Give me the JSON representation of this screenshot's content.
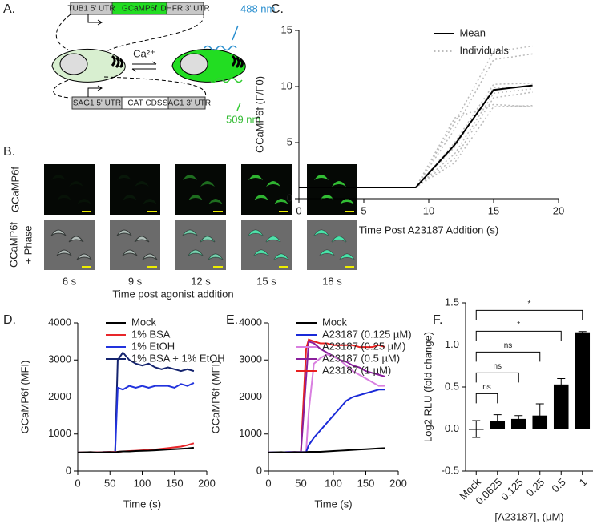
{
  "panel_a": {
    "label": "A.",
    "top_construct": [
      "TUB1 5' UTR",
      "GCaMP6f",
      "DHFR 3' UTR"
    ],
    "bottom_construct": [
      "SAG1 5' UTR",
      "CAT-CDS",
      "SAG1 3' UTR"
    ],
    "ion": "Ca²⁺",
    "excitation": "488 nm",
    "emission": "509 nm"
  },
  "panel_b": {
    "label": "B.",
    "row_labels": [
      [
        "GCaMP6f"
      ],
      [
        "GCaMP6f",
        "+ Phase"
      ]
    ],
    "times": [
      "6 s",
      "9 s",
      "12 s",
      "15 s",
      "18 s"
    ],
    "xlabel": "Time post agonist addition"
  },
  "chart_data": [
    {
      "type": "line",
      "panel": "C.",
      "xlabel": "Time Post A23187 Addition (s)",
      "ylabel": "GCaMP6f (F/F0)",
      "x": [
        0,
        3,
        6,
        9,
        12,
        15,
        18
      ],
      "xlim": [
        0,
        20
      ],
      "xticks": [
        0,
        5,
        10,
        15,
        20
      ],
      "ylim": [
        0,
        15
      ],
      "yticks": [
        0,
        5,
        10,
        15
      ],
      "legend": "upper right",
      "series": [
        {
          "name": "Mean",
          "color": "#000000",
          "style": "solid",
          "values": [
            1,
            1,
            1,
            1,
            4.8,
            9.7,
            10.1
          ]
        },
        {
          "name": "Individuals",
          "color": "#bbbbbb",
          "style": "dotted",
          "values": [
            [
              1,
              1,
              1,
              1,
              6.8,
              13.1,
              13.6
            ],
            [
              1,
              1,
              1,
              1,
              6.2,
              12.4,
              12.9
            ],
            [
              1,
              1,
              1,
              1,
              5.0,
              10.2,
              10.3
            ],
            [
              1,
              1,
              1,
              1,
              4.6,
              9.9,
              10.0
            ],
            [
              1,
              1,
              1,
              1,
              4.0,
              9.4,
              9.8
            ],
            [
              1,
              1,
              1,
              1,
              3.6,
              9.0,
              9.5
            ],
            [
              1,
              1,
              1,
              1,
              3.2,
              8.2,
              8.3
            ],
            [
              1,
              1,
              1,
              1,
              7.2,
              8.4,
              8.2
            ]
          ]
        }
      ]
    },
    {
      "type": "line",
      "panel": "D.",
      "xlabel": "Time (s)",
      "ylabel": "GCaMP6f (MFI)",
      "x": [
        0,
        10,
        20,
        30,
        40,
        50,
        58,
        62,
        70,
        80,
        90,
        100,
        110,
        120,
        130,
        140,
        150,
        160,
        170,
        180
      ],
      "xlim": [
        0,
        200
      ],
      "xticks": [
        0,
        50,
        100,
        150,
        200
      ],
      "ylim": [
        0,
        4000
      ],
      "yticks": [
        0,
        1000,
        2000,
        3000,
        4000
      ],
      "legend": "upper left",
      "series": [
        {
          "name": "Mock",
          "color": "#000000",
          "values": [
            500,
            505,
            510,
            500,
            505,
            510,
            500,
            520,
            530,
            530,
            540,
            545,
            550,
            560,
            570,
            580,
            590,
            600,
            610,
            630
          ]
        },
        {
          "name": "1% BSA",
          "color": "#e8262a",
          "values": [
            500,
            505,
            510,
            505,
            510,
            515,
            510,
            520,
            530,
            540,
            550,
            560,
            570,
            580,
            600,
            620,
            640,
            660,
            700,
            750
          ]
        },
        {
          "name": "1% EtOH",
          "color": "#2233dd",
          "values": [
            500,
            500,
            505,
            505,
            510,
            510,
            500,
            2250,
            2200,
            2300,
            2250,
            2300,
            2250,
            2300,
            2300,
            2300,
            2250,
            2350,
            2300,
            2380
          ]
        },
        {
          "name": "1% BSA + 1% EtOH",
          "color": "#14236e",
          "values": [
            500,
            500,
            505,
            505,
            510,
            510,
            520,
            3000,
            3200,
            3000,
            2900,
            2850,
            2900,
            2800,
            2750,
            2800,
            2750,
            2700,
            2750,
            2700
          ]
        }
      ]
    },
    {
      "type": "line",
      "panel": "E.",
      "xlabel": "Time (s)",
      "ylabel": "GCaMP6f  (MFI)",
      "x": [
        0,
        10,
        20,
        30,
        40,
        50,
        58,
        62,
        70,
        80,
        90,
        100,
        110,
        120,
        130,
        140,
        150,
        160,
        170,
        180
      ],
      "xlim": [
        0,
        200
      ],
      "xticks": [
        0,
        50,
        100,
        150,
        200
      ],
      "ylim": [
        0,
        4000
      ],
      "yticks": [
        0,
        1000,
        2000,
        3000,
        4000
      ],
      "legend": "upper left",
      "series": [
        {
          "name": "Mock",
          "color": "#000000",
          "values": [
            500,
            505,
            510,
            500,
            510,
            505,
            510,
            520,
            520,
            520,
            530,
            540,
            550,
            560,
            570,
            580,
            590,
            600,
            610,
            620
          ]
        },
        {
          "name": "A23187 (0.125 µM)",
          "color": "#1a2ad8",
          "values": [
            500,
            505,
            505,
            510,
            510,
            510,
            510,
            700,
            900,
            1100,
            1300,
            1500,
            1700,
            1900,
            2000,
            2050,
            2100,
            2150,
            2200,
            2200
          ]
        },
        {
          "name": "A23187 (0.25 µM)",
          "color": "#d97fe0",
          "values": [
            500,
            505,
            505,
            510,
            510,
            510,
            520,
            1600,
            2900,
            3050,
            3150,
            3100,
            3000,
            2850,
            2700,
            2600,
            2500,
            2400,
            2300,
            2300
          ]
        },
        {
          "name": "A23187 (0.5 µM)",
          "color": "#8a1f9c",
          "values": [
            500,
            505,
            505,
            510,
            510,
            510,
            2500,
            3500,
            3450,
            3300,
            3200,
            3100,
            3000,
            2950,
            2850,
            2800,
            2700,
            2650,
            2600,
            2550
          ]
        },
        {
          "name": "A23187 (1 µM)",
          "color": "#e82020",
          "values": [
            500,
            505,
            505,
            510,
            510,
            510,
            3300,
            3550,
            3500,
            3450,
            3450,
            3400,
            3400,
            3400,
            3400,
            3350,
            3350,
            3350,
            3400,
            3350
          ]
        }
      ]
    },
    {
      "type": "bar",
      "panel": "F.",
      "xlabel": "[A23187], (µM)",
      "ylabel": "Log2 RLU (fold change)",
      "categories": [
        "Mock",
        "0.0625",
        "0.125",
        "0.25",
        "0.5",
        "1"
      ],
      "values": [
        0,
        0.1,
        0.12,
        0.16,
        0.53,
        1.15
      ],
      "errors": [
        0.1,
        0.07,
        0.04,
        0.14,
        0.07,
        0.01
      ],
      "significance": [
        null,
        "ns",
        "ns",
        "ns",
        "*",
        "*"
      ],
      "color": "#000000",
      "ylim": [
        -0.5,
        1.5
      ],
      "yticks": [
        -0.5,
        {
          "value": 0,
          "label": "0.0"
        },
        0.5,
        {
          "value": 1,
          "label": "1.0"
        },
        1.5
      ]
    }
  ]
}
